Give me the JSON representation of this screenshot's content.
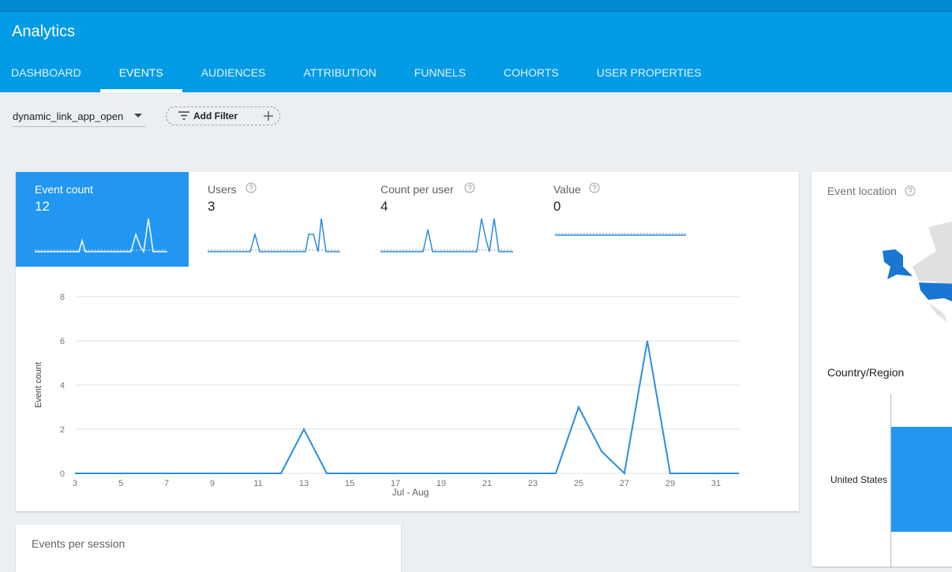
{
  "header": {
    "title": "Analytics",
    "tabs": [
      "DASHBOARD",
      "EVENTS",
      "AUDIENCES",
      "ATTRIBUTION",
      "FUNNELS",
      "COHORTS",
      "USER PROPERTIES"
    ]
  },
  "filters": {
    "event": "dynamic_link_app_open",
    "add_filter": "Add Filter"
  },
  "metrics": [
    {
      "label": "Event count",
      "value": 12
    },
    {
      "label": "Users",
      "value": 3
    },
    {
      "label": "Count per user",
      "value": 4
    },
    {
      "label": "Value",
      "value": 0
    }
  ],
  "chart_data": {
    "type": "line",
    "x_label": "Jul - Aug",
    "y_label": "Event count",
    "categories": [
      "3",
      null,
      "5",
      null,
      "7",
      null,
      "9",
      null,
      "11",
      null,
      "13",
      null,
      "15",
      null,
      "17",
      null,
      "19",
      null,
      "21",
      null,
      "23",
      null,
      "25",
      null,
      "27",
      null,
      "29",
      null,
      "31",
      null
    ],
    "series": [
      {
        "name": "Event count",
        "color": "#2a8ce0",
        "values": [
          0,
          0,
          0,
          0,
          0,
          0,
          0,
          0,
          0,
          0,
          2,
          0,
          0,
          0,
          0,
          0,
          0,
          0,
          0,
          0,
          0,
          0,
          3,
          1,
          0,
          6,
          0,
          0,
          0,
          0
        ]
      }
    ],
    "ylim": [
      0,
      8
    ],
    "yticks": [
      0,
      2,
      4,
      6,
      8
    ],
    "grid": true
  },
  "location": {
    "title": "Event location",
    "country_title": "Country/Region",
    "rows": [
      "United States"
    ]
  },
  "events_per_session": {
    "title": "Events per session"
  }
}
